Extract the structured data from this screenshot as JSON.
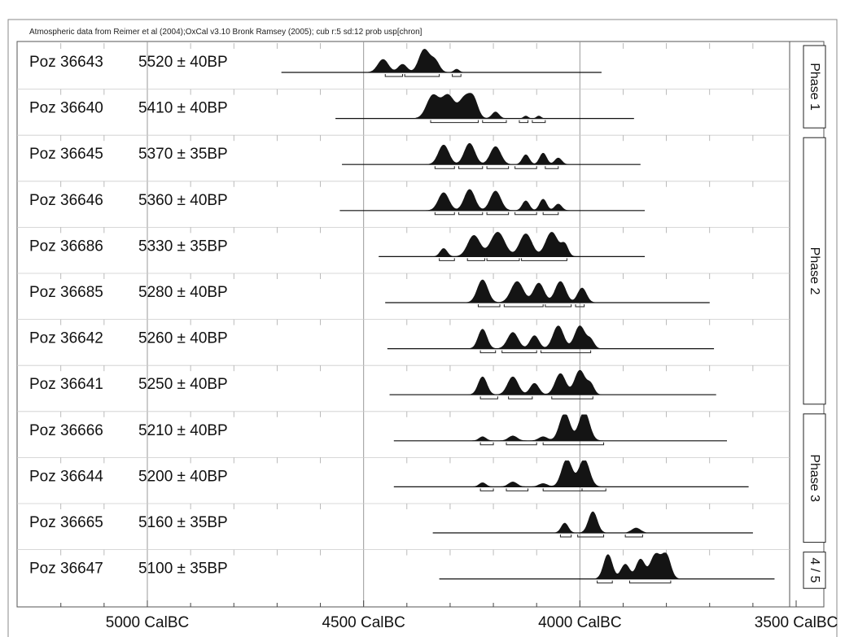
{
  "chart_data": {
    "type": "area",
    "header": "Atmospheric data from Reimer et al (2004);OxCal v3.10 Bronk Ramsey (2005); cub r:5 sd:12 prob usp[chron]",
    "x_axis": {
      "unit": "CalBC",
      "range": [
        5250,
        3500
      ],
      "reversed": true,
      "ticks": [
        {
          "value": 5000,
          "label": "5000 CalBC"
        },
        {
          "value": 4500,
          "label": "4500 CalBC"
        },
        {
          "value": 4000,
          "label": "4000 CalBC"
        },
        {
          "value": 3500,
          "label": "3500 CalBC"
        }
      ],
      "grid": true
    },
    "samples": [
      {
        "id": "Poz 36643",
        "age": "5520 ± 40BP",
        "range": [
          4690,
          3950
        ],
        "peaks": [
          [
            4455,
            16,
            12
          ],
          [
            4410,
            10,
            10
          ],
          [
            4360,
            28,
            12
          ],
          [
            4335,
            14,
            10
          ],
          [
            4285,
            4,
            6
          ]
        ],
        "hpd": [
          [
            4450,
            4410
          ],
          [
            4405,
            4325
          ],
          [
            4295,
            4275
          ]
        ]
      },
      {
        "id": "Poz 36640",
        "age": "5410 ± 40BP",
        "range": [
          4565,
          3875
        ],
        "peaks": [
          [
            4340,
            28,
            14
          ],
          [
            4305,
            28,
            14
          ],
          [
            4265,
            26,
            14
          ],
          [
            4245,
            18,
            10
          ],
          [
            4195,
            8,
            8
          ],
          [
            4125,
            3,
            5
          ],
          [
            4095,
            3,
            5
          ]
        ],
        "hpd": [
          [
            4345,
            4235
          ],
          [
            4225,
            4170
          ],
          [
            4140,
            4120
          ],
          [
            4110,
            4080
          ]
        ]
      },
      {
        "id": "Poz 36645",
        "age": "5370 ± 35BP",
        "range": [
          4550,
          3860
        ],
        "peaks": [
          [
            4315,
            24,
            12
          ],
          [
            4255,
            26,
            12
          ],
          [
            4195,
            22,
            12
          ],
          [
            4125,
            12,
            8
          ],
          [
            4085,
            14,
            8
          ],
          [
            4050,
            8,
            8
          ]
        ],
        "hpd": [
          [
            4335,
            4290
          ],
          [
            4280,
            4225
          ],
          [
            4215,
            4165
          ],
          [
            4150,
            4100
          ],
          [
            4080,
            4050
          ]
        ]
      },
      {
        "id": "Poz 36646",
        "age": "5360 ± 40BP",
        "range": [
          4555,
          3850
        ],
        "peaks": [
          [
            4315,
            22,
            12
          ],
          [
            4255,
            26,
            12
          ],
          [
            4195,
            24,
            12
          ],
          [
            4125,
            12,
            8
          ],
          [
            4085,
            14,
            8
          ],
          [
            4050,
            8,
            8
          ]
        ],
        "hpd": [
          [
            4335,
            4290
          ],
          [
            4280,
            4225
          ],
          [
            4215,
            4165
          ],
          [
            4150,
            4100
          ],
          [
            4085,
            4050
          ]
        ]
      },
      {
        "id": "Poz 36686",
        "age": "5330 ± 35BP",
        "range": [
          4465,
          3850
        ],
        "peaks": [
          [
            4315,
            10,
            8
          ],
          [
            4245,
            26,
            14
          ],
          [
            4190,
            30,
            16
          ],
          [
            4125,
            28,
            14
          ],
          [
            4065,
            30,
            14
          ],
          [
            4035,
            14,
            8
          ]
        ],
        "hpd": [
          [
            4325,
            4290
          ],
          [
            4260,
            4220
          ],
          [
            4215,
            4140
          ],
          [
            4135,
            4030
          ]
        ]
      },
      {
        "id": "Poz 36685",
        "age": "5280 ± 40BP",
        "range": [
          4450,
          3700
        ],
        "peaks": [
          [
            4225,
            28,
            12
          ],
          [
            4145,
            26,
            14
          ],
          [
            4095,
            24,
            12
          ],
          [
            4045,
            26,
            12
          ],
          [
            3995,
            18,
            10
          ]
        ],
        "hpd": [
          [
            4235,
            4185
          ],
          [
            4175,
            4085
          ],
          [
            4080,
            4020
          ],
          [
            4010,
            3990
          ]
        ]
      },
      {
        "id": "Poz 36642",
        "age": "5260 ± 40BP",
        "range": [
          4445,
          3690
        ],
        "peaks": [
          [
            4225,
            24,
            10
          ],
          [
            4155,
            20,
            12
          ],
          [
            4105,
            16,
            10
          ],
          [
            4050,
            28,
            12
          ],
          [
            4000,
            28,
            12
          ],
          [
            3975,
            10,
            8
          ]
        ],
        "hpd": [
          [
            4230,
            4195
          ],
          [
            4180,
            4100
          ],
          [
            4090,
            3975
          ]
        ]
      },
      {
        "id": "Poz 36641",
        "age": "5250 ± 40BP",
        "range": [
          4440,
          3685
        ],
        "peaks": [
          [
            4225,
            22,
            10
          ],
          [
            4155,
            22,
            12
          ],
          [
            4105,
            14,
            10
          ],
          [
            4045,
            26,
            12
          ],
          [
            4000,
            30,
            12
          ],
          [
            3975,
            12,
            8
          ]
        ],
        "hpd": [
          [
            4230,
            4190
          ],
          [
            4165,
            4110
          ],
          [
            4065,
            3970
          ]
        ]
      },
      {
        "id": "Poz 36666",
        "age": "5210 ± 40BP",
        "range": [
          4430,
          3660
        ],
        "peaks": [
          [
            4225,
            5,
            8
          ],
          [
            4155,
            6,
            10
          ],
          [
            4085,
            5,
            10
          ],
          [
            4035,
            34,
            12
          ],
          [
            3990,
            36,
            12
          ]
        ],
        "hpd": [
          [
            4230,
            4200
          ],
          [
            4170,
            4100
          ],
          [
            4085,
            3945
          ]
        ]
      },
      {
        "id": "Poz 36644",
        "age": "5200 ± 40BP",
        "range": [
          4430,
          3610
        ],
        "peaks": [
          [
            4225,
            5,
            8
          ],
          [
            4155,
            6,
            10
          ],
          [
            4085,
            4,
            10
          ],
          [
            4030,
            34,
            12
          ],
          [
            3990,
            34,
            12
          ]
        ],
        "hpd": [
          [
            4230,
            4200
          ],
          [
            4170,
            4120
          ],
          [
            4085,
            3995
          ],
          [
            3995,
            3940
          ]
        ]
      },
      {
        "id": "Poz 36665",
        "age": "5160 ± 35BP",
        "range": [
          4340,
          3600
        ],
        "peaks": [
          [
            4035,
            12,
            8
          ],
          [
            3970,
            26,
            10
          ],
          [
            3870,
            6,
            10
          ]
        ],
        "hpd": [
          [
            4045,
            4020
          ],
          [
            4005,
            3945
          ],
          [
            3895,
            3855
          ]
        ]
      },
      {
        "id": "Poz 36647",
        "age": "5100 ± 35BP",
        "range": [
          4325,
          3550
        ],
        "peaks": [
          [
            3935,
            30,
            10
          ],
          [
            3895,
            18,
            10
          ],
          [
            3860,
            24,
            10
          ],
          [
            3825,
            30,
            12
          ],
          [
            3800,
            28,
            10
          ]
        ],
        "hpd": [
          [
            3960,
            3925
          ],
          [
            3885,
            3790
          ]
        ]
      }
    ],
    "phases": [
      {
        "label": "Phase 1",
        "rows": [
          0,
          1
        ]
      },
      {
        "label": "Phase 2",
        "rows": [
          2,
          7
        ]
      },
      {
        "label": "Phase 3",
        "rows": [
          8,
          10
        ]
      },
      {
        "label": "4 / 5",
        "rows": [
          11,
          11
        ]
      }
    ]
  }
}
